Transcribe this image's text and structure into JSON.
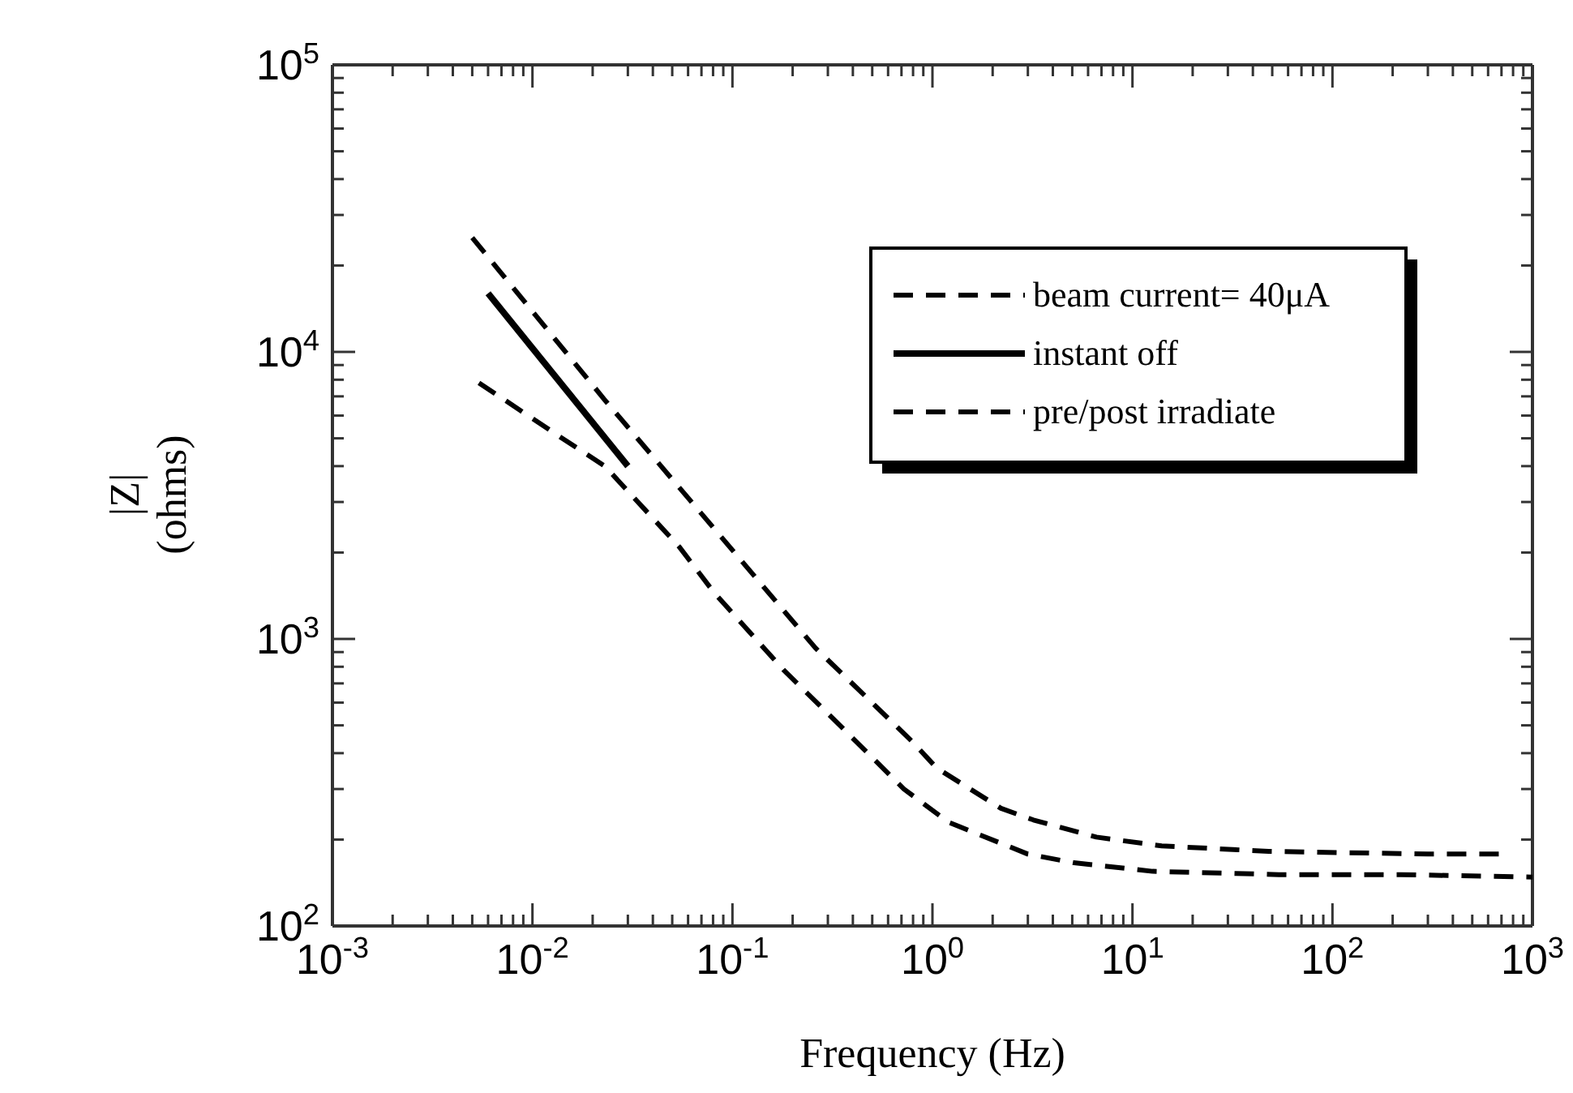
{
  "chart_data": {
    "type": "line",
    "xlabel": "Frequency  (Hz)",
    "ylabel": "|Z|\n(ohms)",
    "log": "xy",
    "legend": "top right",
    "grid": false,
    "xlim": [
      0.001,
      1000
    ],
    "ylim": [
      100,
      100000
    ],
    "xticks": [
      {
        "value": 0.001,
        "label": "10$^{-3}$"
      },
      {
        "value": 0.002,
        "label": null
      },
      {
        "value": 0.003,
        "label": null
      },
      {
        "value": 0.004,
        "label": null
      },
      {
        "value": 0.005,
        "label": null
      },
      {
        "value": 0.006,
        "label": null
      },
      {
        "value": 0.007,
        "label": null
      },
      {
        "value": 0.008,
        "label": null
      },
      {
        "value": 0.009,
        "label": null
      },
      {
        "value": 0.01,
        "label": "10$^{-2}$"
      },
      {
        "value": 0.02,
        "label": null
      },
      {
        "value": 0.03,
        "label": null
      },
      {
        "value": 0.04,
        "label": null
      },
      {
        "value": 0.05,
        "label": null
      },
      {
        "value": 0.06,
        "label": null
      },
      {
        "value": 0.07,
        "label": null
      },
      {
        "value": 0.08,
        "label": null
      },
      {
        "value": 0.09,
        "label": null
      },
      {
        "value": 0.1,
        "label": "10$^{-1}$"
      },
      {
        "value": 0.2,
        "label": null
      },
      {
        "value": 0.3,
        "label": null
      },
      {
        "value": 0.4,
        "label": null
      },
      {
        "value": 0.5,
        "label": null
      },
      {
        "value": 0.6,
        "label": null
      },
      {
        "value": 0.7,
        "label": null
      },
      {
        "value": 0.8,
        "label": null
      },
      {
        "value": 0.9,
        "label": null
      },
      {
        "value": 1,
        "label": "10$^{0}$"
      },
      {
        "value": 2,
        "label": null
      },
      {
        "value": 3,
        "label": null
      },
      {
        "value": 4,
        "label": null
      },
      {
        "value": 5,
        "label": null
      },
      {
        "value": 6,
        "label": null
      },
      {
        "value": 7,
        "label": null
      },
      {
        "value": 8,
        "label": null
      },
      {
        "value": 9,
        "label": null
      },
      {
        "value": 10,
        "label": "10$^{1}$"
      },
      {
        "value": 20,
        "label": null
      },
      {
        "value": 30,
        "label": null
      },
      {
        "value": 40,
        "label": null
      },
      {
        "value": 50,
        "label": null
      },
      {
        "value": 60,
        "label": null
      },
      {
        "value": 70,
        "label": null
      },
      {
        "value": 80,
        "label": null
      },
      {
        "value": 90,
        "label": null
      },
      {
        "value": 100,
        "label": "10$^{2}$"
      },
      {
        "value": 200,
        "label": null
      },
      {
        "value": 300,
        "label": null
      },
      {
        "value": 400,
        "label": null
      },
      {
        "value": 500,
        "label": null
      },
      {
        "value": 600,
        "label": null
      },
      {
        "value": 700,
        "label": null
      },
      {
        "value": 800,
        "label": null
      },
      {
        "value": 900,
        "label": null
      },
      {
        "value": 1000,
        "label": "10$^{3}$"
      }
    ],
    "yticks": [
      {
        "value": 100,
        "label": "10$^{2}$"
      },
      {
        "value": 200,
        "label": null
      },
      {
        "value": 300,
        "label": null
      },
      {
        "value": 400,
        "label": null
      },
      {
        "value": 500,
        "label": null
      },
      {
        "value": 600,
        "label": null
      },
      {
        "value": 700,
        "label": null
      },
      {
        "value": 800,
        "label": null
      },
      {
        "value": 900,
        "label": null
      },
      {
        "value": 1000,
        "label": "10$^{3}$"
      },
      {
        "value": 2000,
        "label": null
      },
      {
        "value": 3000,
        "label": null
      },
      {
        "value": 4000,
        "label": null
      },
      {
        "value": 5000,
        "label": null
      },
      {
        "value": 6000,
        "label": null
      },
      {
        "value": 7000,
        "label": null
      },
      {
        "value": 8000,
        "label": null
      },
      {
        "value": 9000,
        "label": null
      },
      {
        "value": 10000,
        "label": "10$^{4}$"
      },
      {
        "value": 20000,
        "label": null
      },
      {
        "value": 30000,
        "label": null
      },
      {
        "value": 40000,
        "label": null
      },
      {
        "value": 50000,
        "label": null
      },
      {
        "value": 60000,
        "label": null
      },
      {
        "value": 70000,
        "label": null
      },
      {
        "value": 80000,
        "label": null
      },
      {
        "value": 90000,
        "label": null
      },
      {
        "value": 100000,
        "label": "10$^{5}$"
      }
    ],
    "series": [
      {
        "name": "beam current= 40μA",
        "color": "#000000",
        "line_style": "dashed",
        "x": [
          0.0054,
          0.0135,
          0.023,
          0.054,
          0.081,
          0.18,
          0.3,
          0.72,
          1.2,
          3.0,
          5.1,
          12.6,
          54,
          220,
          1000
        ],
        "values": [
          7800,
          5100,
          4000,
          2100,
          1450,
          780,
          550,
          300,
          230,
          178,
          166,
          155,
          151,
          151,
          148
        ]
      },
      {
        "name": "instant off",
        "color": "#000000",
        "line_style": "solid",
        "x": [
          0.006,
          0.03
        ],
        "values": [
          16000,
          4000
        ]
      },
      {
        "name": "pre/post irradiate",
        "color": "#000000",
        "line_style": "dashed",
        "x": [
          0.005,
          0.0069,
          0.023,
          0.078,
          0.26,
          0.79,
          1.05,
          2.2,
          3.2,
          6.6,
          14,
          48,
          300,
          720
        ],
        "values": [
          25000,
          19000,
          6800,
          2500,
          930,
          440,
          355,
          257,
          234,
          204,
          190,
          182,
          178,
          178
        ]
      }
    ]
  }
}
